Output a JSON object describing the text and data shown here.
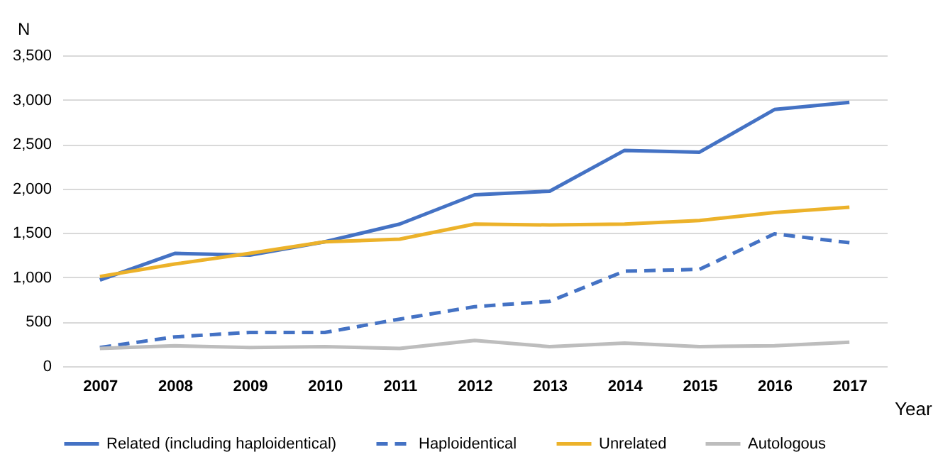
{
  "chart_data": {
    "type": "line",
    "xlabel": "Year",
    "ylabel": "N",
    "categories": [
      "2007",
      "2008",
      "2009",
      "2010",
      "2011",
      "2012",
      "2013",
      "2014",
      "2015",
      "2016",
      "2017"
    ],
    "series": [
      {
        "name": "Related (including haploidentical)",
        "color": "#4472c4",
        "line_style": "solid",
        "values": [
          970,
          1270,
          1250,
          1400,
          1600,
          1930,
          1970,
          2430,
          2410,
          2890,
          2970
        ]
      },
      {
        "name": "Haploidentical",
        "color": "#4472c4",
        "line_style": "dashed",
        "values": [
          210,
          330,
          380,
          380,
          530,
          670,
          730,
          1070,
          1090,
          1490,
          1390
        ]
      },
      {
        "name": "Unrelated",
        "color": "#ecb22a",
        "line_style": "solid",
        "values": [
          1010,
          1150,
          1270,
          1400,
          1430,
          1600,
          1590,
          1600,
          1640,
          1730,
          1790
        ]
      },
      {
        "name": "Autologous",
        "color": "#bdbdbd",
        "line_style": "solid",
        "values": [
          200,
          230,
          210,
          220,
          200,
          290,
          220,
          260,
          220,
          230,
          270
        ]
      }
    ],
    "ylim": [
      0,
      3500
    ],
    "yticks": [
      0,
      500,
      {
        "value": 1000,
        "label": "1,000"
      },
      {
        "value": 1500,
        "label": "1,500"
      },
      {
        "value": 2000,
        "label": "2,000"
      },
      {
        "value": 2500,
        "label": "2,500"
      },
      {
        "value": 3000,
        "label": "3,000"
      },
      {
        "value": 3500,
        "label": "3,500"
      }
    ],
    "grid": "y",
    "legend": "bottom"
  }
}
